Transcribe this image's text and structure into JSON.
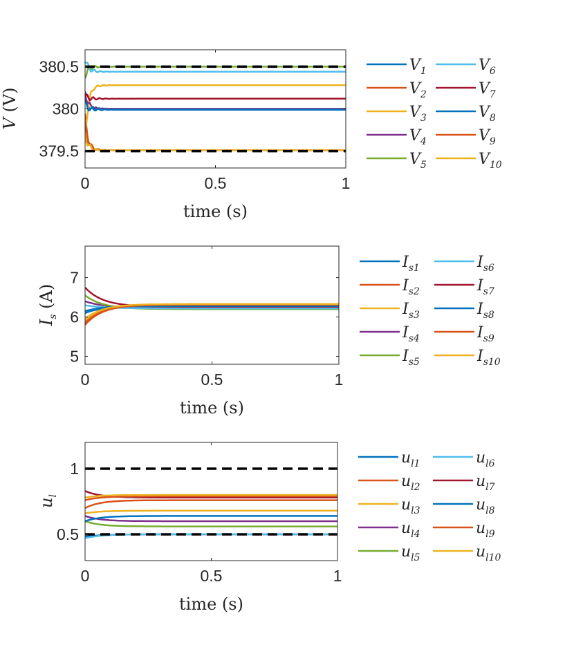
{
  "colors": [
    "#0072BD",
    "#D95319",
    "#EDB120",
    "#7E2F8E",
    "#77AC30",
    "#4DBEEE",
    "#A2142F",
    "#0072BD",
    "#D95319",
    "#EDB120"
  ],
  "chart_data": [
    {
      "type": "line",
      "xlabel": "time (s)",
      "ylabel": "V (V)",
      "xlim": [
        0,
        1
      ],
      "ylim": [
        379.3,
        380.7
      ],
      "xticks": [
        "0",
        "0.5",
        "1"
      ],
      "yticks": [
        "379.5",
        "380",
        "380.5"
      ],
      "grid": false,
      "legend_position": "right",
      "bounds": [
        379.5,
        380.5
      ],
      "series": [
        {
          "name": "V1",
          "init": 380.1,
          "final": 380.0
        },
        {
          "name": "V2",
          "init": 379.9,
          "final": 379.51
        },
        {
          "name": "V3",
          "init": 379.6,
          "final": 380.28
        },
        {
          "name": "V4",
          "init": 380.2,
          "final": 380.0
        },
        {
          "name": "V5",
          "init": 380.4,
          "final": 380.5
        },
        {
          "name": "V6",
          "init": 380.6,
          "final": 380.44
        },
        {
          "name": "V7",
          "init": 380.15,
          "final": 380.12
        },
        {
          "name": "V8",
          "init": 380.05,
          "final": 379.99
        },
        {
          "name": "V9",
          "init": 379.8,
          "final": 379.51
        },
        {
          "name": "V10",
          "init": 379.7,
          "final": 379.51
        }
      ]
    },
    {
      "type": "line",
      "xlabel": "time (s)",
      "ylabel": "Is (A)",
      "xlim": [
        0,
        1
      ],
      "ylim": [
        4.8,
        7.8
      ],
      "xticks": [
        "0",
        "0.5",
        "1"
      ],
      "yticks": [
        "5",
        "6",
        "7"
      ],
      "grid": false,
      "legend_position": "right",
      "series": [
        {
          "name": "Is1",
          "init": 6.1,
          "final": 6.28
        },
        {
          "name": "Is2",
          "init": 5.8,
          "final": 6.32
        },
        {
          "name": "Is3",
          "init": 5.9,
          "final": 6.3
        },
        {
          "name": "Is4",
          "init": 6.4,
          "final": 6.24
        },
        {
          "name": "Is5",
          "init": 6.55,
          "final": 6.2
        },
        {
          "name": "Is6",
          "init": 6.3,
          "final": 6.22
        },
        {
          "name": "Is7",
          "init": 6.75,
          "final": 6.26
        },
        {
          "name": "Is8",
          "init": 6.15,
          "final": 6.28
        },
        {
          "name": "Is9",
          "init": 5.85,
          "final": 6.31
        },
        {
          "name": "Is10",
          "init": 5.95,
          "final": 6.33
        }
      ]
    },
    {
      "type": "line",
      "xlabel": "time (s)",
      "ylabel": "ul",
      "xlim": [
        0,
        1
      ],
      "ylim": [
        0.3,
        1.2
      ],
      "xticks": [
        "0",
        "0.5",
        "1"
      ],
      "yticks": [
        "0.5",
        "1"
      ],
      "grid": false,
      "legend_position": "right",
      "bounds": [
        0.5,
        1.0
      ],
      "series": [
        {
          "name": "ul1",
          "init": 0.48,
          "final": 0.5
        },
        {
          "name": "ul2",
          "init": 0.7,
          "final": 0.76
        },
        {
          "name": "ul3",
          "init": 0.66,
          "final": 0.68
        },
        {
          "name": "ul4",
          "init": 0.64,
          "final": 0.6
        },
        {
          "name": "ul5",
          "init": 0.6,
          "final": 0.56
        },
        {
          "name": "ul6",
          "init": 0.47,
          "final": 0.5
        },
        {
          "name": "ul7",
          "init": 0.83,
          "final": 0.78
        },
        {
          "name": "ul8",
          "init": 0.6,
          "final": 0.64
        },
        {
          "name": "ul9",
          "init": 0.76,
          "final": 0.79
        },
        {
          "name": "ul10",
          "init": 0.78,
          "final": 0.8
        }
      ]
    }
  ],
  "legends": [
    {
      "base": "V",
      "subs": [
        "1",
        "2",
        "3",
        "4",
        "5",
        "6",
        "7",
        "8",
        "9",
        "10"
      ]
    },
    {
      "base": "I",
      "subs": [
        "s1",
        "s2",
        "s3",
        "s4",
        "s5",
        "s6",
        "s7",
        "s8",
        "s9",
        "s10"
      ]
    },
    {
      "base": "u",
      "subs": [
        "l1",
        "l2",
        "l3",
        "l4",
        "l5",
        "l6",
        "l7",
        "l8",
        "l9",
        "l10"
      ]
    }
  ]
}
